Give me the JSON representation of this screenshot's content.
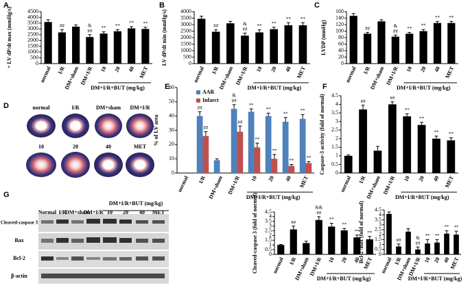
{
  "chart_data": [
    {
      "type": "bar",
      "panel": "A",
      "y_label": "+ LV dP/dt max (mmHg/s)",
      "group_label": "DM+I/R+BUT (mg/kg)",
      "categories": [
        "normal",
        "I/R",
        "DM+sham",
        "DM+I/R",
        "10",
        "20",
        "40",
        "MET"
      ],
      "values": [
        3600,
        2700,
        3200,
        2300,
        2600,
        2800,
        3050,
        3000
      ],
      "errors": [
        200,
        250,
        150,
        200,
        150,
        150,
        150,
        150
      ],
      "annotations": [
        null,
        [
          "##"
        ],
        null,
        [
          "&",
          "##"
        ],
        [
          "**"
        ],
        [
          "**"
        ],
        [
          "**"
        ],
        [
          "**"
        ]
      ],
      "color": "#000000",
      "ylim": [
        0,
        4500
      ],
      "yticks": [
        0,
        500,
        1000,
        1500,
        2000,
        2500,
        3000,
        3500,
        4000,
        4500
      ]
    },
    {
      "type": "bar",
      "panel": "B",
      "y_label": "LV dP/dt min (mmHg/s)",
      "group_label": "DM+I/R+BUT (mg/kg)",
      "categories": [
        "normal",
        "I/R",
        "DM+sham",
        "DM+I/R",
        "10",
        "20",
        "40",
        "MET"
      ],
      "values": [
        3450,
        2450,
        3100,
        2150,
        2400,
        2650,
        2950,
        2950
      ],
      "errors": [
        200,
        150,
        150,
        200,
        200,
        150,
        200,
        200
      ],
      "annotations": [
        null,
        [
          "##"
        ],
        null,
        [
          "&",
          "##"
        ],
        [
          "**"
        ],
        [
          "**"
        ],
        [
          "**"
        ],
        [
          "**"
        ]
      ],
      "color": "#000000",
      "ylim": [
        0,
        4000
      ],
      "yticks": [
        0,
        500,
        1000,
        1500,
        2000,
        2500,
        3000,
        3500,
        4000
      ]
    },
    {
      "type": "bar",
      "panel": "C",
      "y_label": "LVDP (mmHg)",
      "group_label": "DM+I/R+BUT (mg/kg)",
      "categories": [
        "normal",
        "I/R",
        "DM+sham",
        "DM+I/R",
        "10",
        "20",
        "40",
        "MET"
      ],
      "values": [
        147,
        92,
        130,
        83,
        92,
        100,
        125,
        125
      ],
      "errors": [
        7,
        4,
        5,
        5,
        4,
        5,
        5,
        5
      ],
      "annotations": [
        null,
        [
          "##"
        ],
        null,
        [
          "&",
          "##"
        ],
        [
          "**"
        ],
        [
          "**"
        ],
        [
          "**"
        ],
        [
          "**"
        ]
      ],
      "color": "#000000",
      "ylim": [
        0,
        160
      ],
      "yticks": [
        0,
        20,
        40,
        60,
        80,
        100,
        120,
        140,
        160
      ]
    },
    {
      "type": "bar",
      "panel": "E",
      "y_label": "% of LV area",
      "group_label": "DM+I/R+BUT (mg/kg)",
      "categories": [
        "normal",
        "I/R",
        "DM+sham",
        "DM+I/R",
        "10",
        "20",
        "40",
        "MET"
      ],
      "series": [
        {
          "name": "AAR",
          "color": "#4f81bd",
          "values": [
            0,
            40,
            9,
            45,
            43,
            40,
            36,
            38
          ],
          "errors": [
            0,
            3,
            1,
            3,
            2,
            2,
            3,
            3
          ],
          "annotations": [
            null,
            [
              "##"
            ],
            null,
            [
              "&",
              "##"
            ],
            [
              "**"
            ],
            [
              "**"
            ],
            [
              "**"
            ],
            [
              "**"
            ]
          ]
        },
        {
          "name": "Infarct",
          "color": "#c0504d",
          "values": [
            0,
            26,
            0,
            29,
            18,
            10,
            5,
            7
          ],
          "errors": [
            0,
            3,
            0,
            4,
            3,
            3,
            1,
            1
          ],
          "annotations": [
            null,
            [
              "##"
            ],
            null,
            [
              "##"
            ],
            [
              "**"
            ],
            [
              "**"
            ],
            [
              "**"
            ],
            [
              "**"
            ]
          ]
        }
      ],
      "ylim": [
        0,
        60
      ],
      "yticks": [
        0,
        10,
        20,
        30,
        40,
        50,
        60
      ]
    },
    {
      "type": "bar",
      "panel": "F",
      "y_label": "Caspase-3 activity (fold of normal)",
      "group_label": "DM+I/R+BUT (mg/kg)",
      "categories": [
        "normal",
        "I/R",
        "DM+sham",
        "DM+I/R",
        "10",
        "20",
        "40",
        "MET"
      ],
      "values": [
        1,
        3.7,
        1.3,
        4.0,
        3.3,
        2.8,
        2.0,
        1.9
      ],
      "errors": [
        0.05,
        0.25,
        0.25,
        0.15,
        0.15,
        0.15,
        0.15,
        0.15
      ],
      "annotations": [
        null,
        [
          "##"
        ],
        null,
        [
          "##"
        ],
        [
          "**"
        ],
        [
          "**"
        ],
        [
          "**"
        ],
        [
          "**"
        ]
      ],
      "color": "#000000",
      "ylim": [
        0,
        4.5
      ],
      "yticks": [
        0,
        0.5,
        1,
        1.5,
        2,
        2.5,
        3,
        3.5,
        4,
        4.5
      ]
    },
    {
      "type": "bar",
      "y_label": "Cleaved-caspase 3 (fold of normal)",
      "group_label": "DM+I/R+BUT (mg/kg)",
      "categories": [
        "normal",
        "I/R",
        "DM+sham",
        "DM+I/R",
        "10",
        "20",
        "40",
        "MET"
      ],
      "values": [
        1,
        2.65,
        1.2,
        3.65,
        2.95,
        2.55,
        1.8,
        1.6
      ],
      "errors": [
        0.05,
        0.35,
        0.2,
        0.35,
        0.35,
        0.2,
        0.25,
        0.3
      ],
      "annotations": [
        null,
        [
          "##"
        ],
        null,
        [
          "&&",
          "##"
        ],
        [
          "**"
        ],
        [
          "**"
        ],
        [
          "**"
        ],
        [
          "**"
        ]
      ],
      "color": "#000000",
      "ylim": [
        0,
        4.5
      ],
      "yticks": [
        0,
        0.5,
        1,
        1.5,
        2,
        2.5,
        3,
        3.5,
        4,
        4.5
      ]
    },
    {
      "type": "bar",
      "y_label": "Bcl-2 /Bax (fold of normal)",
      "group_label": "DM+I/R+BUT (mg/kg)",
      "categories": [
        "normal",
        "I/R",
        "DM+sham",
        "DM+I/R",
        "10",
        "20",
        "40",
        "MET"
      ],
      "values": [
        4.1,
        0.8,
        2.3,
        0.5,
        1.1,
        1.2,
        2.1,
        2.0
      ],
      "errors": [
        0.2,
        0.25,
        0.3,
        0.25,
        0.4,
        0.3,
        0.3,
        0.35
      ],
      "annotations": [
        null,
        [
          "##"
        ],
        null,
        [
          "&",
          "##"
        ],
        [
          "**"
        ],
        [
          "**"
        ],
        [
          "**"
        ],
        [
          "**"
        ]
      ],
      "color": "#000000",
      "ylim": [
        0,
        4.5
      ],
      "yticks": [
        0,
        0.5,
        1,
        1.5,
        2,
        2.5,
        3,
        3.5,
        4,
        4.5
      ]
    }
  ],
  "panel_d": {
    "letter": "D",
    "labels": [
      "normal",
      "I/R",
      "DM+sham",
      "DM+I/R",
      "10",
      "20",
      "40",
      "MET"
    ]
  },
  "panel_g": {
    "letter": "G",
    "header": "DM+I/R+BUT (mg/kg)",
    "lanes": [
      "Normal",
      "I/R",
      "DM+sham",
      "DM+I/R",
      "10",
      "20",
      "40",
      "MET"
    ],
    "rows": [
      "Cleaved-caspase 3",
      "Bax",
      "Bcl-2",
      "β-actin"
    ]
  }
}
